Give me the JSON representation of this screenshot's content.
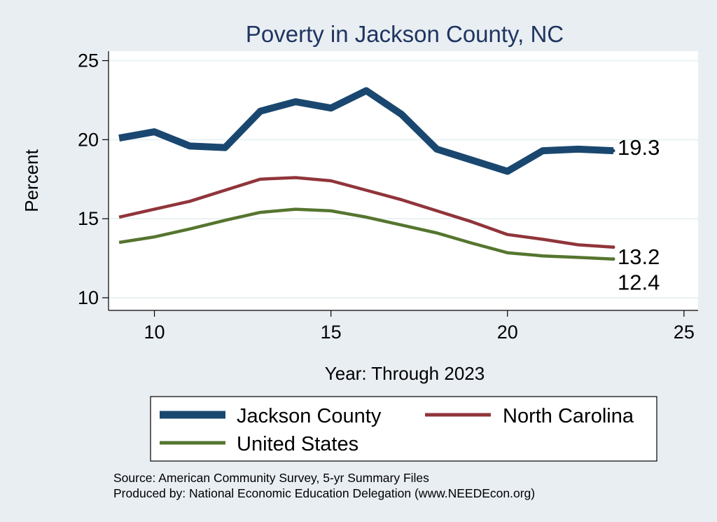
{
  "chart_data": {
    "type": "line",
    "title": "Poverty in Jackson County, NC",
    "xlabel": "Year: Through 2023",
    "ylabel": "Percent",
    "xlim": [
      8.7,
      25.4
    ],
    "ylim": [
      9.2,
      25.6
    ],
    "xticks": [
      10,
      15,
      20,
      25
    ],
    "yticks": [
      10,
      15,
      20,
      25
    ],
    "grid": true,
    "legend_position": "bottom",
    "series": [
      {
        "name": "Jackson County",
        "color": "#1a476f",
        "x": [
          9,
          10,
          11,
          12,
          13,
          14,
          15,
          16,
          17,
          18,
          19,
          20,
          21,
          22,
          23
        ],
        "values": [
          20.1,
          20.5,
          19.6,
          19.5,
          21.8,
          22.4,
          22.0,
          23.1,
          21.6,
          19.4,
          18.7,
          18.0,
          19.3,
          19.4,
          19.3
        ],
        "end_label": "19.3"
      },
      {
        "name": "North Carolina",
        "color": "#90353b",
        "x": [
          9,
          10,
          11,
          12,
          13,
          14,
          15,
          16,
          17,
          18,
          19,
          20,
          21,
          22,
          23
        ],
        "values": [
          15.1,
          15.6,
          16.1,
          16.8,
          17.5,
          17.6,
          17.4,
          16.8,
          16.2,
          15.5,
          14.8,
          14.0,
          13.7,
          13.35,
          13.2
        ],
        "end_label": "13.2"
      },
      {
        "name": "United States",
        "color": "#55752f",
        "x": [
          9,
          10,
          11,
          12,
          13,
          14,
          15,
          16,
          17,
          18,
          19,
          20,
          21,
          22,
          23
        ],
        "values": [
          13.5,
          13.85,
          14.35,
          14.9,
          15.4,
          15.6,
          15.5,
          15.1,
          14.6,
          14.1,
          13.45,
          12.85,
          12.65,
          12.55,
          12.45
        ],
        "end_label": "12.4"
      }
    ],
    "notes": [
      "Source: American Community Survey, 5-yr Summary Files",
      "Produced by: National Economic Education Delegation (www.NEEDEcon.org)"
    ]
  }
}
